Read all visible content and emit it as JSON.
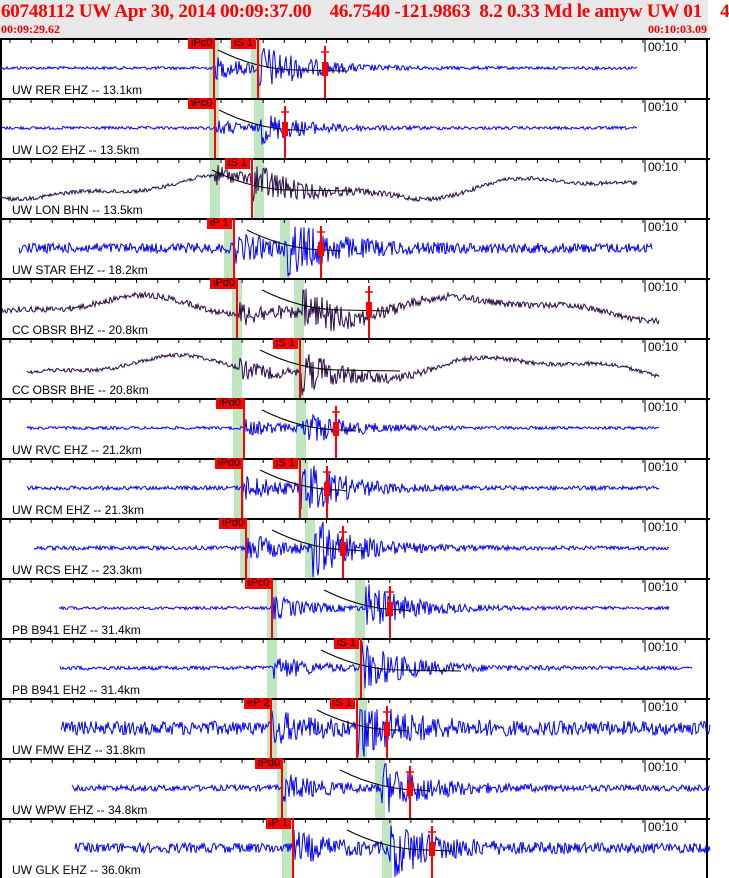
{
  "header": {
    "title": "60748112 UW Apr 30, 2014 00:09:37.00    46.7540 -121.9863  8.2 0.33 Md le amyw UW 01    4",
    "start_time": "00:09:29.62",
    "end_time": "00:10:03.09",
    "time_mark_label": "00:10"
  },
  "colors": {
    "short_period": "#0000ff",
    "broadband": "#2a0a4a",
    "pick": "#ff0000",
    "window": "#bfe6bf"
  },
  "traces": [
    {
      "label": "UW RER EHZ -- 13.1km",
      "picks": [
        "iPc0",
        "iS 1"
      ]
    },
    {
      "label": "UW LO2 EHZ -- 13.5km",
      "picks": [
        "iPc0"
      ]
    },
    {
      "label": "UW LON BHN -- 13.5km",
      "picks": [
        "iS 1"
      ]
    },
    {
      "label": "UW STAR EHZ -- 18.2km",
      "picks": [
        "iP 1"
      ]
    },
    {
      "label": "CC OBSR BHZ -- 20.8km",
      "picks": [
        "iPd0"
      ]
    },
    {
      "label": "CC OBSR BHE -- 20.8km",
      "picks": [
        "iS 1"
      ]
    },
    {
      "label": "UW RVC EHZ -- 21.2km",
      "picks": [
        "iPd0"
      ]
    },
    {
      "label": "UW RCM EHZ -- 21.3km",
      "picks": [
        "iPd0",
        "iS 1"
      ]
    },
    {
      "label": "UW RCS EHZ -- 23.3km",
      "picks": [
        "iPd0"
      ]
    },
    {
      "label": "PB B941 EHZ -- 31.4km",
      "picks": [
        "iPc0"
      ]
    },
    {
      "label": "PB B941 EH2 -- 31.4km",
      "picks": [
        "iS 1"
      ]
    },
    {
      "label": "UW FMW EHZ -- 31.8km",
      "picks": [
        "eP 2",
        "iS 1"
      ]
    },
    {
      "label": "UW WPW EHZ -- 34.8km",
      "picks": [
        "iPd0"
      ]
    },
    {
      "label": "UW GLK EHZ -- 36.0km",
      "picks": [
        "iP 1"
      ]
    }
  ]
}
